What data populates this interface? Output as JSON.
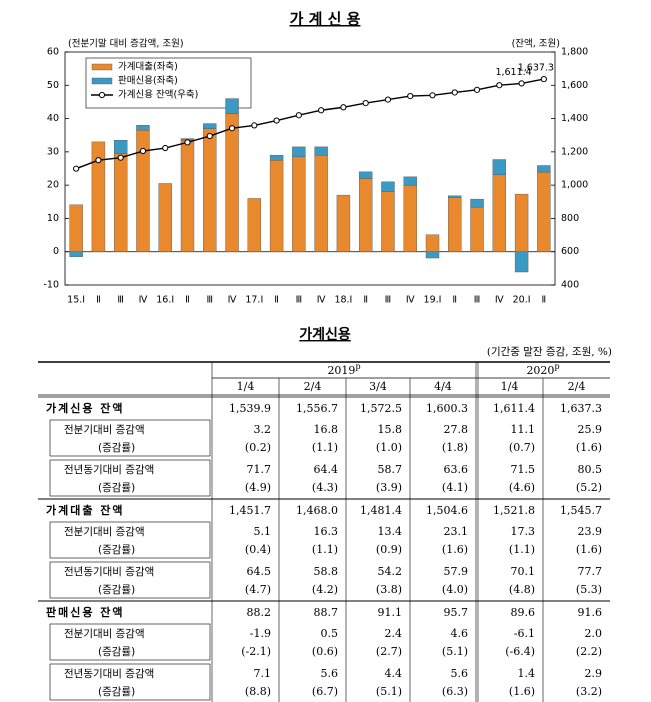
{
  "chart_data": {
    "type": "bar",
    "title": "가 계 신 용",
    "ylabel": "(전분기말 대비 증감액, 조원)",
    "y2label": "(잔액, 조원)",
    "categories": [
      "15.Ⅰ",
      "Ⅱ",
      "Ⅲ",
      "Ⅳ",
      "16.Ⅰ",
      "Ⅱ",
      "Ⅲ",
      "Ⅳ",
      "17.Ⅰ",
      "Ⅱ",
      "Ⅲ",
      "Ⅳ",
      "18.Ⅰ",
      "Ⅱ",
      "Ⅲ",
      "Ⅳ",
      "19.Ⅰ",
      "Ⅱ",
      "Ⅲ",
      "Ⅳ",
      "20.Ⅰ",
      "Ⅱ"
    ],
    "series": [
      {
        "name": "가계대출(좌축)",
        "type": "bar",
        "color": "#e8892e",
        "values": [
          14.1,
          33,
          29.5,
          36.5,
          20.5,
          33.5,
          37,
          41.5,
          16,
          27.5,
          28.5,
          29,
          17,
          22,
          18,
          20,
          5.1,
          16.3,
          13.4,
          23.1,
          17.3,
          23.9
        ]
      },
      {
        "name": "판매신용(좌축)",
        "type": "bar",
        "color": "#3a9ac4",
        "values": [
          -1.5,
          0,
          4,
          1.5,
          0,
          0.5,
          1.5,
          4.5,
          0,
          1.5,
          3,
          2.5,
          0,
          2,
          3,
          2.5,
          -1.9,
          0.5,
          2.4,
          4.6,
          -6.1,
          2.0
        ]
      },
      {
        "name": "가계신용 잔액(우축)",
        "type": "line",
        "axis": "y2",
        "color": "#000000",
        "values": [
          1099,
          1150,
          1165,
          1205,
          1223,
          1257,
          1295,
          1342,
          1359,
          1388,
          1420,
          1450,
          1468,
          1493,
          1514,
          1535,
          1539.9,
          1556.7,
          1572.5,
          1600.3,
          1611.4,
          1637.3
        ],
        "value_labels": [
          null,
          null,
          null,
          null,
          null,
          null,
          null,
          null,
          null,
          null,
          null,
          null,
          null,
          null,
          null,
          null,
          null,
          null,
          null,
          null,
          "1,611.4",
          "1,637.3"
        ]
      }
    ],
    "stacked": true,
    "legend": "upper left",
    "ylim": [
      -10,
      60
    ],
    "yticks": [
      -10,
      0,
      10,
      20,
      30,
      40,
      50,
      60
    ],
    "y2lim": [
      400,
      1800
    ],
    "y2ticks": [
      400,
      600,
      800,
      {
        "value": 1000,
        "label": "1,000"
      },
      {
        "value": 1200,
        "label": "1,200"
      },
      {
        "value": 1400,
        "label": "1,400"
      },
      {
        "value": 1600,
        "label": "1,600"
      },
      {
        "value": 1800,
        "label": "1,800"
      }
    ]
  },
  "table": {
    "title": "가계신용",
    "unit": "(기간중 말잔 증감, 조원, %)",
    "years": [
      {
        "text": "2019",
        "sup": "p"
      },
      {
        "text": "2020",
        "sup": "p"
      }
    ],
    "quarters": [
      "1/4",
      "2/4",
      "3/4",
      "4/4",
      "1/4",
      "2/4"
    ],
    "groups": [
      {
        "label": "가계신용 잔액",
        "values": [
          "1,539.9",
          "1,556.7",
          "1,572.5",
          "1,600.3",
          "1,611.4",
          "1,637.3"
        ],
        "rows": [
          {
            "label": "전분기대비 증감액",
            "values": [
              "3.2",
              "16.8",
              "15.8",
              "27.8",
              "11.1",
              "25.9"
            ]
          },
          {
            "label": "(증감률)",
            "values": [
              "(0.2)",
              "(1.1)",
              "(1.0)",
              "(1.8)",
              "(0.7)",
              "(1.6)"
            ]
          },
          {
            "label": "전년동기대비 증감액",
            "values": [
              "71.7",
              "64.4",
              "58.7",
              "63.6",
              "71.5",
              "80.5"
            ]
          },
          {
            "label": "(증감률)",
            "values": [
              "(4.9)",
              "(4.3)",
              "(3.9)",
              "(4.1)",
              "(4.6)",
              "(5.2)"
            ]
          }
        ]
      },
      {
        "label": "가계대출 잔액",
        "values": [
          "1,451.7",
          "1,468.0",
          "1,481.4",
          "1,504.6",
          "1,521.8",
          "1,545.7"
        ],
        "rows": [
          {
            "label": "전분기대비 증감액",
            "values": [
              "5.1",
              "16.3",
              "13.4",
              "23.1",
              "17.3",
              "23.9"
            ]
          },
          {
            "label": "(증감률)",
            "values": [
              "(0.4)",
              "(1.1)",
              "(0.9)",
              "(1.6)",
              "(1.1)",
              "(1.6)"
            ]
          },
          {
            "label": "전년동기대비 증감액",
            "values": [
              "64.5",
              "58.8",
              "54.2",
              "57.9",
              "70.1",
              "77.7"
            ]
          },
          {
            "label": "(증감률)",
            "values": [
              "(4.7)",
              "(4.2)",
              "(3.8)",
              "(4.0)",
              "(4.8)",
              "(5.3)"
            ]
          }
        ]
      },
      {
        "label": "판매신용 잔액",
        "values": [
          "88.2",
          "88.7",
          "91.1",
          "95.7",
          "89.6",
          "91.6"
        ],
        "rows": [
          {
            "label": "전분기대비 증감액",
            "values": [
              "-1.9",
              "0.5",
              "2.4",
              "4.6",
              "-6.1",
              "2.0"
            ]
          },
          {
            "label": "(증감률)",
            "values": [
              "(-2.1)",
              "(0.6)",
              "(2.7)",
              "(5.1)",
              "(-6.4)",
              "(2.2)"
            ]
          },
          {
            "label": "전년동기대비 증감액",
            "values": [
              "7.1",
              "5.6",
              "4.4",
              "5.6",
              "1.4",
              "2.9"
            ]
          },
          {
            "label": "(증감률)",
            "values": [
              "(8.8)",
              "(6.7)",
              "(5.1)",
              "(6.3)",
              "(1.6)",
              "(3.2)"
            ]
          }
        ]
      }
    ]
  }
}
